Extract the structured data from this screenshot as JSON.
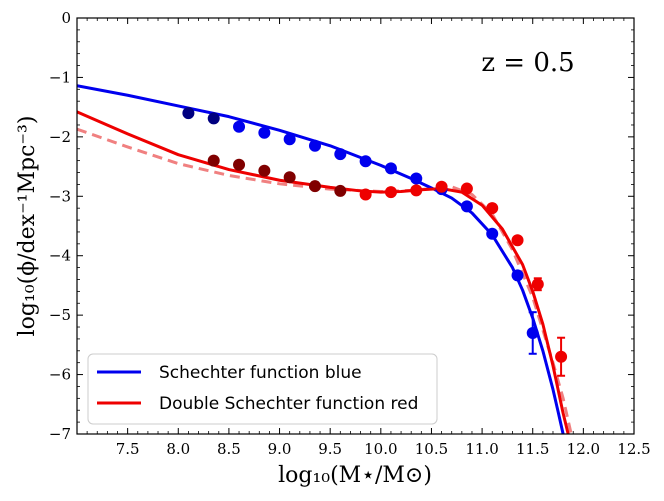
{
  "chart_data": {
    "type": "line",
    "annotation": "z = 0.5",
    "xlabel": "log₁₀(M⋆/M⊙)",
    "ylabel": "log₁₀(ϕ/dex⁻¹Mpc⁻³)",
    "xlim": [
      7.0,
      12.5
    ],
    "ylim": [
      -7,
      0
    ],
    "x_ticks": [
      "7.5",
      "8.0",
      "8.5",
      "9.0",
      "9.5",
      "10.0",
      "10.5",
      "11.0",
      "11.5",
      "12.0",
      "12.5"
    ],
    "y_ticks": [
      "0",
      "−1",
      "−2",
      "−3",
      "−4",
      "−5",
      "−6",
      "−7"
    ],
    "legend_position": "lower-left",
    "colors": {
      "blue": "#0000ee",
      "red": "#ee0000",
      "red_dashed": "#f08080"
    },
    "series": [
      {
        "name": "Schechter function blue",
        "style": "solid",
        "color": "#0000ee",
        "fit_x": [
          7.0,
          7.5,
          8.0,
          8.5,
          9.0,
          9.5,
          10.0,
          10.3,
          10.5,
          10.7,
          10.9,
          11.1,
          11.3,
          11.4,
          11.5,
          11.6,
          11.7,
          11.75,
          11.8
        ],
        "fit_y": [
          -1.14,
          -1.3,
          -1.48,
          -1.66,
          -1.89,
          -2.15,
          -2.48,
          -2.7,
          -2.86,
          -3.03,
          -3.28,
          -3.65,
          -4.2,
          -4.58,
          -5.05,
          -5.6,
          -6.25,
          -6.62,
          -7.0
        ],
        "points": [
          {
            "x": 8.1,
            "y": -1.6,
            "err": 0,
            "color": "#000080"
          },
          {
            "x": 8.35,
            "y": -1.69,
            "err": 0,
            "color": "#000080"
          },
          {
            "x": 8.6,
            "y": -1.83,
            "err": 0,
            "color": "#0000ee"
          },
          {
            "x": 8.85,
            "y": -1.93,
            "err": 0,
            "color": "#0000ee"
          },
          {
            "x": 9.1,
            "y": -2.04,
            "err": 0,
            "color": "#0000ee"
          },
          {
            "x": 9.35,
            "y": -2.15,
            "err": 0,
            "color": "#0000ee"
          },
          {
            "x": 9.6,
            "y": -2.29,
            "err": 0,
            "color": "#0000ee"
          },
          {
            "x": 9.85,
            "y": -2.41,
            "err": 0,
            "color": "#0000ee"
          },
          {
            "x": 10.1,
            "y": -2.53,
            "err": 0,
            "color": "#0000ee"
          },
          {
            "x": 10.35,
            "y": -2.7,
            "err": 0,
            "color": "#0000ee"
          },
          {
            "x": 10.6,
            "y": -2.88,
            "err": 0,
            "color": "#0000ee"
          },
          {
            "x": 10.85,
            "y": -3.17,
            "err": 0,
            "color": "#0000ee"
          },
          {
            "x": 11.1,
            "y": -3.63,
            "err": 0,
            "color": "#0000ee"
          },
          {
            "x": 11.35,
            "y": -4.33,
            "err": 0.05,
            "color": "#0000ee"
          },
          {
            "x": 11.5,
            "y": -5.3,
            "err": 0.35,
            "color": "#0000ee"
          }
        ]
      },
      {
        "name": "Double Schechter function red",
        "style": "solid",
        "color": "#ee0000",
        "fit_x": [
          7.0,
          7.5,
          8.0,
          8.5,
          9.0,
          9.5,
          9.8,
          10.0,
          10.2,
          10.4,
          10.6,
          10.8,
          11.0,
          11.2,
          11.4,
          11.5,
          11.6,
          11.7,
          11.8,
          11.85
        ],
        "fit_y": [
          -1.58,
          -1.95,
          -2.3,
          -2.55,
          -2.73,
          -2.85,
          -2.91,
          -2.93,
          -2.92,
          -2.89,
          -2.87,
          -2.93,
          -3.15,
          -3.55,
          -4.15,
          -4.6,
          -5.15,
          -5.85,
          -6.65,
          -7.0
        ],
        "points": [
          {
            "x": 8.35,
            "y": -2.4,
            "err": 0,
            "color": "#800000"
          },
          {
            "x": 8.6,
            "y": -2.47,
            "err": 0,
            "color": "#800000"
          },
          {
            "x": 8.85,
            "y": -2.57,
            "err": 0,
            "color": "#800000"
          },
          {
            "x": 9.1,
            "y": -2.68,
            "err": 0,
            "color": "#800000"
          },
          {
            "x": 9.35,
            "y": -2.83,
            "err": 0,
            "color": "#800000"
          },
          {
            "x": 9.6,
            "y": -2.91,
            "err": 0,
            "color": "#800000"
          },
          {
            "x": 9.85,
            "y": -2.97,
            "err": 0,
            "color": "#ee0000"
          },
          {
            "x": 10.1,
            "y": -2.93,
            "err": 0,
            "color": "#ee0000"
          },
          {
            "x": 10.35,
            "y": -2.9,
            "err": 0,
            "color": "#ee0000"
          },
          {
            "x": 10.6,
            "y": -2.84,
            "err": 0,
            "color": "#ee0000"
          },
          {
            "x": 10.85,
            "y": -2.87,
            "err": 0,
            "color": "#ee0000"
          },
          {
            "x": 11.1,
            "y": -3.2,
            "err": 0,
            "color": "#ee0000"
          },
          {
            "x": 11.35,
            "y": -3.74,
            "err": 0,
            "color": "#ee0000"
          },
          {
            "x": 11.55,
            "y": -4.48,
            "err": 0.1,
            "color": "#ee0000"
          },
          {
            "x": 11.78,
            "y": -5.7,
            "err": 0.32,
            "color": "#ee0000"
          }
        ]
      },
      {
        "name": "red dashed",
        "style": "dashed",
        "color": "#f08080",
        "in_legend": false,
        "fit_x": [
          7.0,
          7.5,
          8.0,
          8.5,
          9.0,
          9.5,
          10.0,
          10.3,
          10.5,
          10.7,
          10.9,
          11.1,
          11.3,
          11.5,
          11.7,
          11.8,
          11.88
        ],
        "fit_y": [
          -1.87,
          -2.17,
          -2.45,
          -2.65,
          -2.79,
          -2.88,
          -2.92,
          -2.9,
          -2.87,
          -2.84,
          -2.97,
          -3.3,
          -3.9,
          -4.7,
          -5.8,
          -6.4,
          -7.0
        ]
      }
    ]
  }
}
